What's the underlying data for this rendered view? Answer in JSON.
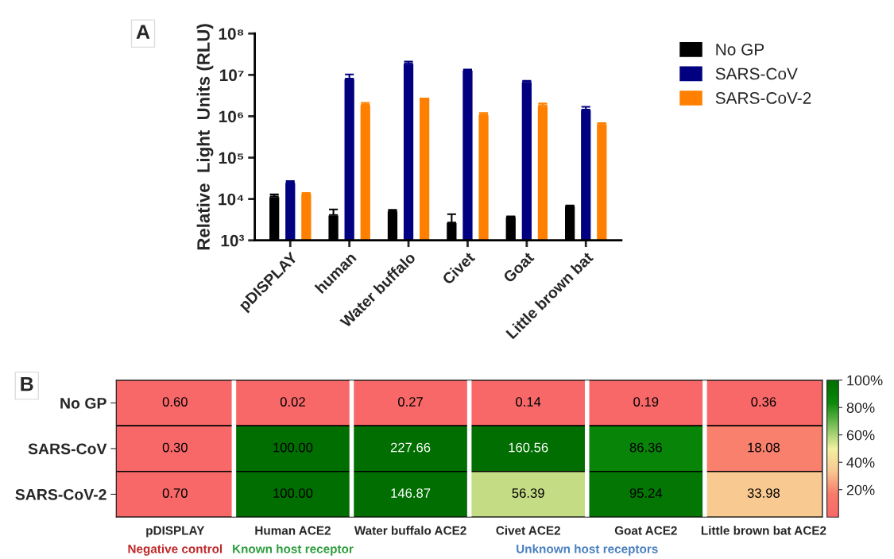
{
  "chart_data": [
    {
      "type": "bar",
      "title": "A",
      "ylabel": "Relative  Light  Units (RLU)",
      "log": true,
      "categories": [
        "pDISPLAY",
        "human",
        "Water buffalo",
        "Civet",
        "Goat",
        "Little brown bat"
      ],
      "ylim": [
        1000,
        100000000
      ],
      "yticks": [
        {
          "value": 1000,
          "label": "10³"
        },
        {
          "value": 10000,
          "label": "10⁴"
        },
        {
          "value": 100000,
          "label": "10⁵"
        },
        {
          "value": 1000000,
          "label": "10⁶"
        },
        {
          "value": 10000000,
          "label": "10⁷"
        },
        {
          "value": 100000000,
          "label": "10⁸"
        }
      ],
      "legend": "right",
      "grid": false,
      "series": [
        {
          "name": "No GP",
          "color": "#000000",
          "values": [
            11500,
            4100,
            5100,
            2700,
            3700,
            6800
          ],
          "errors": [
            [
              11500,
              12900
            ],
            [
              4100,
              5600
            ],
            [
              5100,
              5450
            ],
            [
              2700,
              4300
            ],
            [
              3700,
              3800
            ],
            [
              6800,
              7000
            ]
          ]
        },
        {
          "name": "SARS-CoV",
          "color": "#000080",
          "values": [
            25000,
            8100000,
            19000000,
            13000000,
            6900000,
            1450000
          ],
          "errors": [
            [
              25000,
              27000
            ],
            [
              8100000,
              10300000
            ],
            [
              19000000,
              21000000
            ],
            [
              13000000,
              13500000
            ],
            [
              6900000,
              7200000
            ],
            [
              1450000,
              1700000
            ]
          ]
        },
        {
          "name": "SARS-CoV-2",
          "color": "#ff8000",
          "values": [
            13500,
            1900000,
            2900000,
            1100000,
            1850000,
            660000
          ],
          "errors": [
            [
              13500,
              14000
            ],
            [
              1900000,
              2100000
            ],
            null,
            [
              1100000,
              1200000
            ],
            [
              1850000,
              2050000
            ],
            [
              660000,
              680000
            ]
          ]
        }
      ]
    },
    {
      "type": "heatmap",
      "title": "B",
      "categories": [
        "pDISPLAY",
        "Human ACE2",
        "Water buffalo ACE2",
        "Civet ACE2",
        "Goat ACE2",
        "Little brown bat ACE2"
      ],
      "y_categories": [
        "No GP",
        "SARS-CoV",
        "SARS-CoV-2"
      ],
      "cells": [
        [
          0.6,
          0.02,
          0.27,
          0.14,
          0.19,
          0.36
        ],
        [
          0.3,
          100.0,
          227.66,
          160.56,
          86.36,
          18.08
        ],
        [
          0.7,
          100.0,
          146.87,
          56.39,
          95.24,
          33.98
        ]
      ],
      "cell_labels": [
        [
          "0.60",
          "0.02",
          "0.27",
          "0.14",
          "0.19",
          "0.36"
        ],
        [
          "0.30",
          "100.00",
          "227.66",
          "160.56",
          "86.36",
          "18.08"
        ],
        [
          "0.70",
          "100.00",
          "146.87",
          "56.39",
          "95.24",
          "33.98"
        ]
      ],
      "clim": [
        0,
        100
      ],
      "cticks": [
        {
          "value": 20,
          "label": "20%"
        },
        {
          "value": 40,
          "label": "40%"
        },
        {
          "value": 60,
          "label": "60%"
        },
        {
          "value": 80,
          "label": "80%"
        },
        {
          "value": 100,
          "label": "100%"
        }
      ],
      "annotations": [
        "Negative control",
        "Known host receptor",
        "Unknown host receptors"
      ]
    }
  ]
}
